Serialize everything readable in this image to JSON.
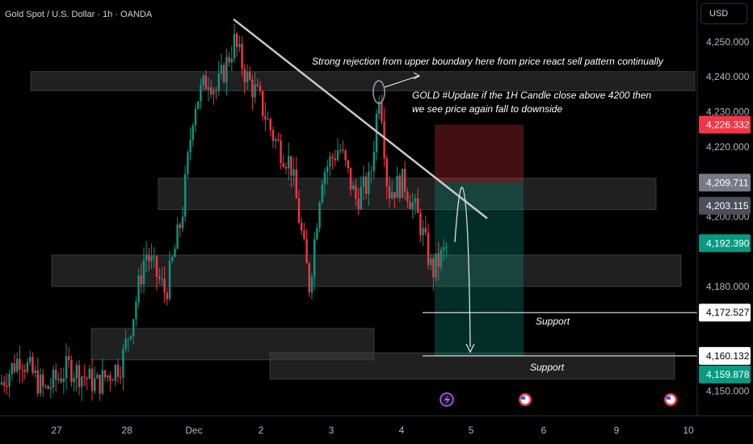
{
  "header": {
    "symbol_title": "Gold Spot / U.S. Dollar · 1h · OANDA",
    "currency": "USD"
  },
  "chart_data": {
    "type": "candlestick",
    "title": "Gold Spot / U.S. Dollar · 1h · OANDA",
    "ylim": [
      4143,
      4262
    ],
    "y_ticks": [
      "4,150.000",
      "4,180.000",
      "4,200.000",
      "4,220.000",
      "4,230.000",
      "4,240.000",
      "4,250.000"
    ],
    "x_ticks": [
      "27",
      "28",
      "Dec",
      "2",
      "3",
      "4",
      "5",
      "6",
      "9",
      "10"
    ],
    "grid": false,
    "price_tags": [
      {
        "label": "4,226.332",
        "value": 4226.332,
        "color": "#f23645",
        "text_color": "#ffffff"
      },
      {
        "label": "4,209.711",
        "value": 4209.711,
        "color": "#787b86",
        "text_color": "#ffffff"
      },
      {
        "label": "4,203.115",
        "value": 4203.115,
        "color": "#4b4f5a",
        "text_color": "#ffffff"
      },
      {
        "label": "4,192.390",
        "value": 4192.39,
        "color": "#089981",
        "text_color": "#ffffff"
      },
      {
        "label": "4,172.527",
        "value": 4172.527,
        "color": "#ffffff",
        "text_color": "#000000"
      },
      {
        "label": "4,160.132",
        "value": 4160.132,
        "color": "#ffffff",
        "text_color": "#000000"
      },
      {
        "label": "4,159.878",
        "value": 4159.878,
        "color": "#089981",
        "text_color": "#ffffff"
      }
    ],
    "zones": [
      {
        "from_value": 4241.5,
        "to_value": 4236.0
      },
      {
        "from_value": 4211.0,
        "to_value": 4202.0
      },
      {
        "from_value": 4189.0,
        "to_value": 4180.0
      },
      {
        "from_value": 4168.0,
        "to_value": 4159.0
      },
      {
        "from_value": 4161.0,
        "to_value": 4153.5
      }
    ],
    "position": {
      "entry": 4209.711,
      "stop": 4226.332,
      "target": 4160.132
    },
    "trendline": {
      "from_value": 4256.5,
      "to_value": 4199.5
    },
    "annotations": [
      "Strong rejection from upper boundary here from price react sell pattern continually",
      "GOLD #Update if the 1H Candle close above 4200 then",
      "we see price again fall to downside",
      "Support",
      "Support"
    ],
    "colors": {
      "up": "#089981",
      "down": "#f23645",
      "background": "#000000"
    }
  }
}
